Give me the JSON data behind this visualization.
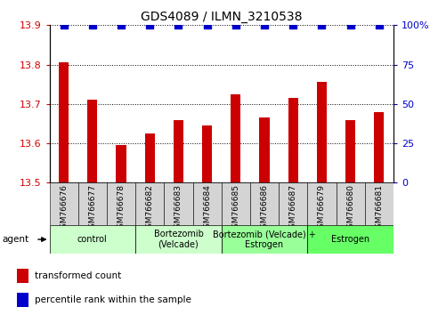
{
  "title": "GDS4089 / ILMN_3210538",
  "samples": [
    "GSM766676",
    "GSM766677",
    "GSM766678",
    "GSM766682",
    "GSM766683",
    "GSM766684",
    "GSM766685",
    "GSM766686",
    "GSM766687",
    "GSM766679",
    "GSM766680",
    "GSM766681"
  ],
  "values": [
    13.805,
    13.71,
    13.595,
    13.625,
    13.66,
    13.645,
    13.725,
    13.665,
    13.715,
    13.755,
    13.66,
    13.68
  ],
  "percentile_value": 100,
  "bar_color": "#cc0000",
  "dot_color": "#0000cc",
  "ylim_left": [
    13.5,
    13.9
  ],
  "ylim_right": [
    0,
    100
  ],
  "yticks_left": [
    13.5,
    13.6,
    13.7,
    13.8,
    13.9
  ],
  "yticks_right": [
    0,
    25,
    50,
    75,
    100
  ],
  "ytick_labels_right": [
    "0",
    "25",
    "50",
    "75",
    "100%"
  ],
  "groups": [
    {
      "label": "control",
      "start": 0,
      "end": 3,
      "color": "#ccffcc"
    },
    {
      "label": "Bortezomib\n(Velcade)",
      "start": 3,
      "end": 6,
      "color": "#ccffcc"
    },
    {
      "label": "Bortezomib (Velcade) +\nEstrogen",
      "start": 6,
      "end": 9,
      "color": "#99ff99"
    },
    {
      "label": "Estrogen",
      "start": 9,
      "end": 12,
      "color": "#66ff66"
    }
  ],
  "agent_label": "agent",
  "legend_items": [
    {
      "color": "#cc0000",
      "label": "transformed count"
    },
    {
      "color": "#0000cc",
      "label": "percentile rank within the sample"
    }
  ],
  "bar_width": 0.35,
  "dot_size": 28,
  "left_tick_color": "#cc0000",
  "right_tick_color": "#0000cc",
  "title_fontsize": 10,
  "axis_fontsize": 8,
  "sample_label_fontsize": 6.5,
  "group_label_fontsize": 7,
  "legend_fontsize": 7.5
}
